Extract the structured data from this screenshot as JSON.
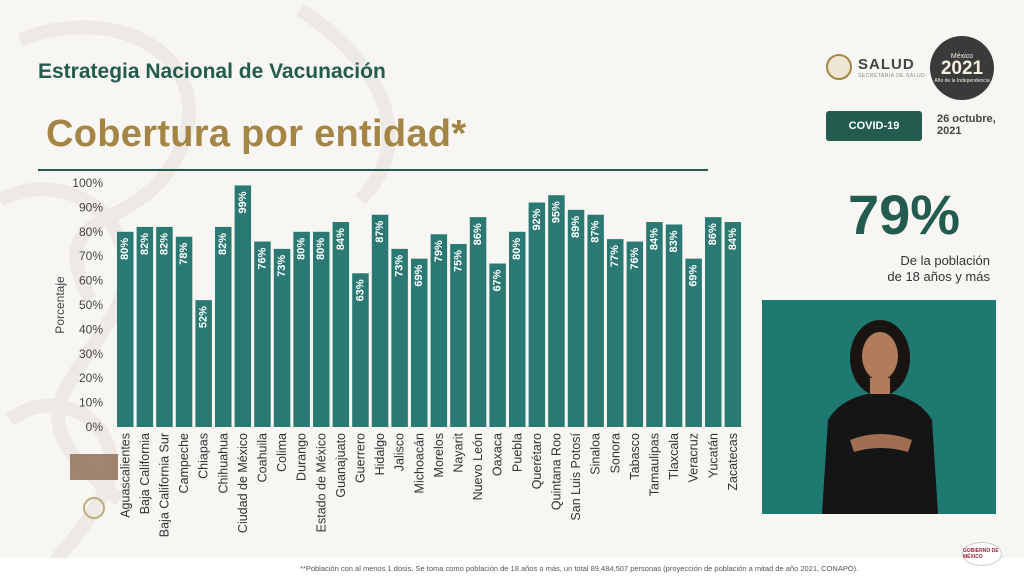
{
  "header": {
    "title": "Estrategia Nacional de Vacunación",
    "subtitle": "Cobertura por entidad*"
  },
  "logos": {
    "salud_label": "SALUD",
    "salud_sub": "SECRETARÍA DE SALUD",
    "year_top": "México",
    "year": "2021",
    "year_bottom": "Año de la Independencia"
  },
  "badge": {
    "label": "COVID-19"
  },
  "date": {
    "line1": "26 octubre,",
    "line2": "2021"
  },
  "summary": {
    "percent": "79%",
    "line1": "De la población",
    "line2": "de 18 años y más"
  },
  "footnote": "**Población con al menos 1 dosis. Se toma como población de 18 años o más, un total 89,484,507 personas (proyección de población a mitad de año 2021, CONAPO).",
  "corner_logo": "GOBIERNO DE MÉXICO",
  "colors": {
    "bar": "#2a7a73",
    "brand_green": "#235b4e",
    "gold": "#a58545"
  },
  "chart_data": {
    "type": "bar",
    "title": "Cobertura por entidad*",
    "xlabel": "",
    "ylabel": "Porcentaje",
    "ylim": [
      0,
      100
    ],
    "yticks": [
      "0%",
      "10%",
      "20%",
      "30%",
      "40%",
      "50%",
      "60%",
      "70%",
      "80%",
      "90%",
      "100%"
    ],
    "grid": false,
    "categories": [
      "Aguascalientes",
      "Baja California",
      "Baja California Sur",
      "Campeche",
      "Chiapas",
      "Chihuahua",
      "Ciudad de México",
      "Coahuila",
      "Colima",
      "Durango",
      "Estado de México",
      "Guanajuato",
      "Guerrero",
      "Hidalgo",
      "Jalisco",
      "Michoacán",
      "Morelos",
      "Nayarit",
      "Nuevo León",
      "Oaxaca",
      "Puebla",
      "Querétaro",
      "Quintana Roo",
      "San Luis Potosí",
      "Sinaloa",
      "Sonora",
      "Tabasco",
      "Tamaulipas",
      "Tlaxcala",
      "Veracruz",
      "Yucatán",
      "Zacatecas"
    ],
    "values": [
      80,
      82,
      82,
      78,
      52,
      82,
      99,
      76,
      73,
      80,
      80,
      84,
      63,
      87,
      73,
      69,
      79,
      75,
      86,
      67,
      80,
      92,
      95,
      89,
      87,
      77,
      76,
      84,
      83,
      69,
      86,
      84
    ],
    "labels": [
      "80%",
      "82%",
      "82%",
      "78%",
      "52%",
      "82%",
      "99%",
      "76%",
      "73%",
      "80%",
      "80%",
      "84%",
      "63%",
      "87%",
      "73%",
      "69%",
      "79%",
      "75%",
      "86%",
      "67%",
      "80%",
      "92%",
      "95%",
      "89%",
      "87%",
      "77%",
      "76%",
      "84%",
      "83%",
      "69%",
      "86%",
      "84%"
    ]
  }
}
